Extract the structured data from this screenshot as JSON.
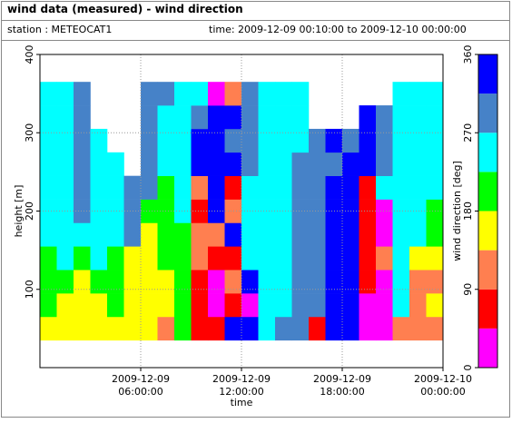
{
  "header": {
    "title": "wind data (measured) - wind direction",
    "station": "station : METEOCAT1",
    "time": "time: 2009-12-09 00:10:00 to 2009-12-10 00:00:00"
  },
  "chart_data": {
    "type": "heatmap",
    "xlabel": "time",
    "ylabel": "height [m]",
    "colorbar_label": "wind direction [deg]",
    "xlim": [
      "2009-12-09 00:00:00",
      "2009-12-10 00:00:00"
    ],
    "xticks": [
      "2009-12-09 06:00:00",
      "2009-12-09 12:00:00",
      "2009-12-09 18:00:00",
      "2009-12-10 00:00:00"
    ],
    "ylim": [
      0,
      400
    ],
    "yticks": [
      100,
      200,
      300,
      400
    ],
    "grid": true,
    "clim": [
      0,
      360
    ],
    "cticks": [
      0,
      90,
      180,
      270,
      360
    ],
    "colorscale": {
      "bounds": [
        0,
        45,
        90,
        135,
        180,
        225,
        270,
        315,
        360
      ],
      "colors": [
        "#ff00ff",
        "#ff0000",
        "#ff7f50",
        "#ffff00",
        "#00ff00",
        "#00ffff",
        "#4682c8",
        "#0000ff"
      ]
    },
    "x": [
      "2009-12-09 00:30:00",
      "2009-12-09 01:30:00",
      "2009-12-09 02:30:00",
      "2009-12-09 03:30:00",
      "2009-12-09 04:30:00",
      "2009-12-09 05:30:00",
      "2009-12-09 06:30:00",
      "2009-12-09 07:30:00",
      "2009-12-09 08:30:00",
      "2009-12-09 09:30:00",
      "2009-12-09 10:30:00",
      "2009-12-09 11:30:00",
      "2009-12-09 12:30:00",
      "2009-12-09 13:30:00",
      "2009-12-09 14:30:00",
      "2009-12-09 15:30:00",
      "2009-12-09 16:30:00",
      "2009-12-09 17:30:00",
      "2009-12-09 18:30:00",
      "2009-12-09 19:30:00",
      "2009-12-09 20:30:00",
      "2009-12-09 21:30:00",
      "2009-12-09 22:30:00",
      "2009-12-09 23:30:00"
    ],
    "y": [
      50,
      80,
      110,
      140,
      170,
      200,
      230,
      260,
      290,
      320,
      350
    ],
    "z": [
      [
        157,
        202,
        202,
        202,
        247,
        247,
        247,
        247,
        247,
        247,
        247
      ],
      [
        157,
        157,
        202,
        247,
        247,
        247,
        247,
        247,
        247,
        247,
        247
      ],
      [
        157,
        157,
        157,
        202,
        247,
        292,
        292,
        292,
        292,
        292,
        292
      ],
      [
        157,
        157,
        202,
        247,
        247,
        247,
        247,
        247,
        247,
        null,
        null
      ],
      [
        157,
        202,
        202,
        202,
        247,
        247,
        247,
        247,
        null,
        null,
        null
      ],
      [
        157,
        157,
        157,
        157,
        292,
        292,
        292,
        null,
        null,
        null,
        null
      ],
      [
        157,
        157,
        157,
        157,
        157,
        202,
        292,
        292,
        292,
        292,
        292
      ],
      [
        112,
        157,
        157,
        202,
        202,
        202,
        202,
        247,
        247,
        247,
        292
      ],
      [
        202,
        202,
        202,
        202,
        202,
        247,
        247,
        247,
        247,
        247,
        247
      ],
      [
        67,
        67,
        67,
        112,
        112,
        67,
        112,
        337,
        337,
        292,
        247
      ],
      [
        67,
        22,
        22,
        67,
        112,
        337,
        337,
        337,
        337,
        337,
        22
      ],
      [
        337,
        67,
        112,
        67,
        337,
        112,
        67,
        337,
        292,
        337,
        112
      ],
      [
        337,
        22,
        337,
        247,
        247,
        247,
        247,
        292,
        292,
        292,
        292
      ],
      [
        247,
        247,
        247,
        247,
        247,
        247,
        247,
        247,
        247,
        247,
        247
      ],
      [
        292,
        247,
        247,
        247,
        247,
        247,
        247,
        247,
        247,
        247,
        247
      ],
      [
        292,
        292,
        292,
        292,
        292,
        292,
        292,
        292,
        247,
        247,
        247
      ],
      [
        67,
        292,
        292,
        292,
        292,
        292,
        292,
        292,
        292,
        null,
        null
      ],
      [
        337,
        337,
        337,
        337,
        337,
        337,
        337,
        292,
        337,
        null,
        null
      ],
      [
        337,
        337,
        337,
        337,
        337,
        337,
        337,
        337,
        292,
        null,
        null
      ],
      [
        22,
        22,
        67,
        67,
        67,
        67,
        67,
        337,
        337,
        337,
        null
      ],
      [
        22,
        22,
        22,
        112,
        22,
        22,
        247,
        292,
        292,
        292,
        null
      ],
      [
        112,
        247,
        247,
        247,
        247,
        247,
        247,
        247,
        247,
        247,
        247
      ],
      [
        112,
        112,
        112,
        157,
        247,
        247,
        247,
        247,
        247,
        247,
        247
      ],
      [
        112,
        157,
        112,
        157,
        202,
        202,
        247,
        247,
        247,
        247,
        247
      ]
    ]
  }
}
